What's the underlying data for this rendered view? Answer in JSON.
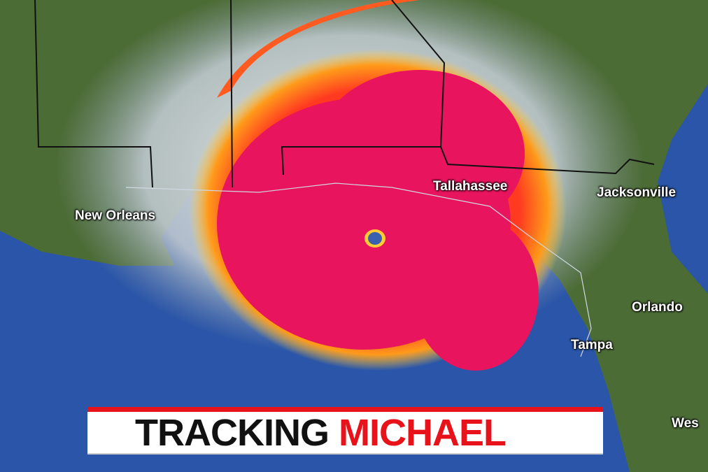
{
  "banner": {
    "word1": "TRACKING",
    "word2": "MICHAEL",
    "accent_color": "#e8121b"
  },
  "cities": {
    "new_orleans": "New Orleans",
    "tallahassee": "Tallahassee",
    "jacksonville": "Jacksonville",
    "orlando": "Orlando",
    "tampa": "Tampa",
    "west": "Wes"
  },
  "colors": {
    "storm_core": "#e8145e",
    "storm_band": "#ff8a1a",
    "land": "#4a6a34",
    "water": "#2a55a8",
    "clouds": "#d8dde0"
  }
}
